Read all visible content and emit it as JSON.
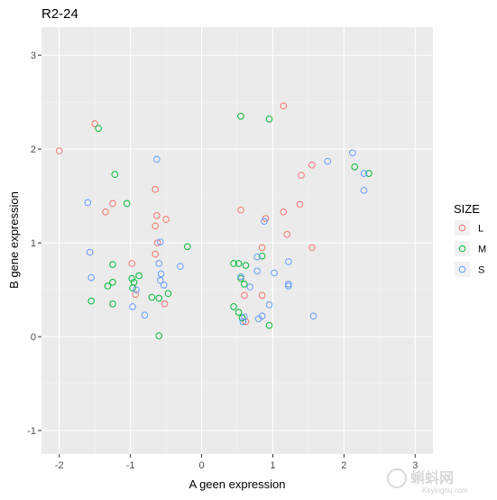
{
  "chart_data": {
    "type": "scatter",
    "title": "R2-24",
    "xlabel": "A geen expression",
    "ylabel": "B gene expression",
    "xlim": [
      -2.25,
      3.25
    ],
    "ylim": [
      -1.25,
      3.3
    ],
    "x_ticks": [
      -2,
      -1,
      0,
      1,
      2,
      3
    ],
    "y_ticks": [
      -1,
      0,
      1,
      2,
      3
    ],
    "x_tick_labels": [
      "-2",
      "-1",
      "0",
      "1",
      "2",
      "3"
    ],
    "y_tick_labels": [
      "-1",
      "0",
      "1",
      "2",
      "3"
    ],
    "grid": true,
    "legend": {
      "title": "SIZE",
      "position": "right"
    },
    "series": [
      {
        "name": "L",
        "color": "#F8766D",
        "points": [
          [
            -1.5,
            2.27
          ],
          [
            -2.0,
            1.98
          ],
          [
            -1.35,
            1.33
          ],
          [
            -1.25,
            1.42
          ],
          [
            -0.98,
            0.78
          ],
          [
            -0.93,
            0.45
          ],
          [
            -0.65,
            1.57
          ],
          [
            -0.65,
            1.18
          ],
          [
            -0.63,
            1.29
          ],
          [
            -0.62,
            1.0
          ],
          [
            -0.65,
            0.88
          ],
          [
            -0.5,
            1.25
          ],
          [
            -0.52,
            0.35
          ],
          [
            1.15,
            2.46
          ],
          [
            0.55,
            1.35
          ],
          [
            0.9,
            1.26
          ],
          [
            0.85,
            0.95
          ],
          [
            0.6,
            0.44
          ],
          [
            0.85,
            0.44
          ],
          [
            0.62,
            0.16
          ],
          [
            1.15,
            1.33
          ],
          [
            1.2,
            1.09
          ],
          [
            1.38,
            1.41
          ],
          [
            1.4,
            1.72
          ],
          [
            1.55,
            1.83
          ],
          [
            1.55,
            0.95
          ]
        ]
      },
      {
        "name": "M",
        "color": "#00BA38",
        "points": [
          [
            -1.45,
            2.22
          ],
          [
            -1.22,
            1.73
          ],
          [
            -1.05,
            1.42
          ],
          [
            -1.25,
            0.77
          ],
          [
            -1.25,
            0.58
          ],
          [
            -1.32,
            0.54
          ],
          [
            -1.55,
            0.38
          ],
          [
            -1.25,
            0.35
          ],
          [
            -0.98,
            0.62
          ],
          [
            -0.95,
            0.58
          ],
          [
            -0.97,
            0.52
          ],
          [
            -0.88,
            0.65
          ],
          [
            -0.7,
            0.42
          ],
          [
            -0.6,
            0.41
          ],
          [
            -0.47,
            0.46
          ],
          [
            -0.6,
            0.01
          ],
          [
            -0.2,
            0.96
          ],
          [
            0.55,
            2.35
          ],
          [
            0.95,
            2.32
          ],
          [
            0.45,
            0.78
          ],
          [
            0.52,
            0.78
          ],
          [
            0.62,
            0.76
          ],
          [
            0.55,
            0.62
          ],
          [
            0.85,
            0.86
          ],
          [
            0.6,
            0.56
          ],
          [
            0.45,
            0.32
          ],
          [
            0.52,
            0.26
          ],
          [
            0.57,
            0.2
          ],
          [
            0.95,
            0.12
          ],
          [
            2.15,
            1.81
          ],
          [
            2.35,
            1.74
          ]
        ]
      },
      {
        "name": "S",
        "color": "#619CFF",
        "points": [
          [
            -0.63,
            1.89
          ],
          [
            -1.6,
            1.43
          ],
          [
            -1.57,
            0.9
          ],
          [
            -1.55,
            0.63
          ],
          [
            -0.58,
            1.01
          ],
          [
            -0.6,
            0.78
          ],
          [
            -0.57,
            0.67
          ],
          [
            -0.58,
            0.6
          ],
          [
            -0.53,
            0.55
          ],
          [
            -0.92,
            0.5
          ],
          [
            -0.97,
            0.32
          ],
          [
            -0.8,
            0.23
          ],
          [
            -0.3,
            0.75
          ],
          [
            0.88,
            1.23
          ],
          [
            0.78,
            0.85
          ],
          [
            0.78,
            0.7
          ],
          [
            1.02,
            0.68
          ],
          [
            1.22,
            0.8
          ],
          [
            1.22,
            0.56
          ],
          [
            1.22,
            0.54
          ],
          [
            0.55,
            0.64
          ],
          [
            0.68,
            0.53
          ],
          [
            0.95,
            0.34
          ],
          [
            0.8,
            0.19
          ],
          [
            0.85,
            0.22
          ],
          [
            0.6,
            0.21
          ],
          [
            0.58,
            0.16
          ],
          [
            1.57,
            0.22
          ],
          [
            1.77,
            1.87
          ],
          [
            2.12,
            1.96
          ],
          [
            2.28,
            1.74
          ],
          [
            2.28,
            1.56
          ]
        ]
      }
    ]
  },
  "watermark": {
    "main": "蝌蚪网",
    "sub": "Keyingou.com"
  }
}
